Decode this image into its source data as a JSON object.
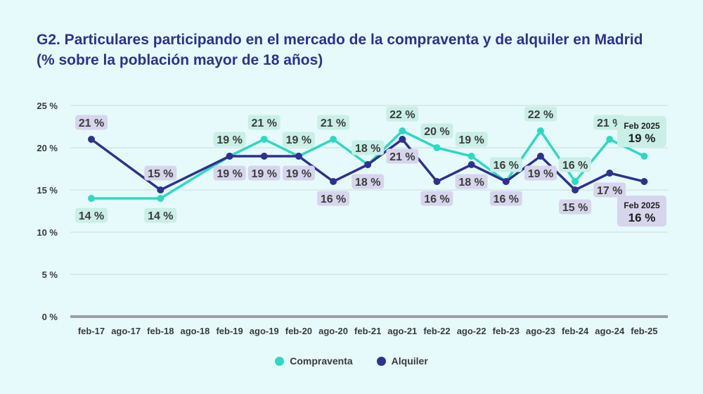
{
  "colors": {
    "compraventa": "#2ed9c3",
    "alquiler": "#2e3192",
    "label_compraventa_bg": "#c9efe6",
    "label_alquiler_bg": "#d6d5ec",
    "grid": "#cfd9db",
    "axis": "#9aa0a2",
    "title": "#2e3192"
  },
  "title": {
    "line1": "G2. Particulares participando en el mercado de la compraventa y de alquiler en Madrid",
    "line2": "(% sobre la población mayor de 18 años)"
  },
  "chart_data": {
    "type": "line",
    "title": "G2. Particulares participando en el mercado de la compraventa y de alquiler en Madrid (% sobre la población mayor de 18 años)",
    "categories": [
      "feb-17",
      "ago-17",
      "feb-18",
      "ago-18",
      "feb-19",
      "ago-19",
      "feb-20",
      "ago-20",
      "feb-21",
      "ago-21",
      "feb-22",
      "ago-22",
      "feb-23",
      "ago-23",
      "feb-24",
      "ago-24",
      "feb-25"
    ],
    "ylim": [
      0,
      25
    ],
    "yticks": [
      0,
      5,
      10,
      15,
      20,
      25
    ],
    "ytick_labels": [
      "0 %",
      "5 %",
      "10 %",
      "15 %",
      "20 %",
      "25 %"
    ],
    "series": [
      {
        "name": "Compraventa",
        "values": [
          14,
          null,
          14,
          null,
          19,
          21,
          19,
          21,
          18,
          22,
          20,
          19,
          16,
          22,
          16,
          21,
          19
        ],
        "labels": [
          "14 %",
          null,
          "14 %",
          null,
          "19 %",
          "21 %",
          "19 %",
          "21 %",
          "18 %",
          "22 %",
          "20 %",
          "19 %",
          "16 %",
          "22 %",
          "16 %",
          "21 %",
          null
        ]
      },
      {
        "name": "Alquiler",
        "values": [
          21,
          null,
          15,
          null,
          19,
          19,
          19,
          16,
          18,
          21,
          16,
          18,
          16,
          19,
          15,
          17,
          16
        ],
        "labels": [
          "21 %",
          null,
          "15 %",
          null,
          "19 %",
          "19 %",
          "19 %",
          "16 %",
          "18 %",
          "21 %",
          "16 %",
          "18 %",
          "16 %",
          "19 %",
          "15 %",
          "17 %",
          null
        ]
      }
    ],
    "annotations": [
      {
        "series": "Compraventa",
        "date": "Feb 2025",
        "value": "19 %"
      },
      {
        "series": "Alquiler",
        "date": "Feb 2025",
        "value": "16 %"
      }
    ],
    "legend": "bottom-center"
  }
}
